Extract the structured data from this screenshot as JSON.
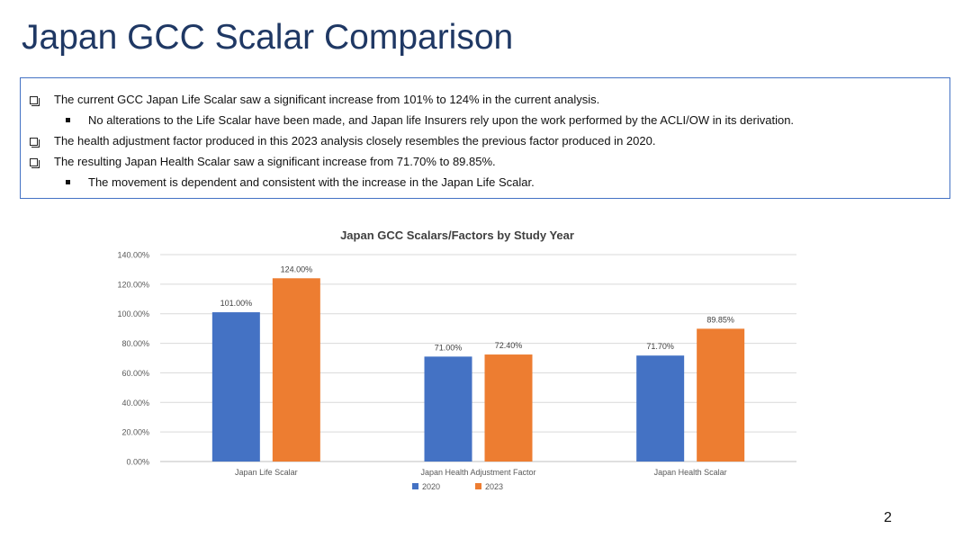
{
  "slide": {
    "title": "Japan GCC Scalar Comparison",
    "page_number": "2"
  },
  "bullets": [
    {
      "level": 1,
      "text": "The current GCC Japan Life Scalar saw a significant increase from 101% to 124% in the current analysis."
    },
    {
      "level": 2,
      "text": "No alterations to the Life Scalar have been made, and Japan life Insurers rely upon the work performed by the ACLI/OW in its derivation."
    },
    {
      "level": 1,
      "text": "The health adjustment factor produced in this 2023 analysis closely resembles the previous factor produced in 2020."
    },
    {
      "level": 1,
      "text": "The resulting Japan Health Scalar saw a significant increase from 71.70% to 89.85%."
    },
    {
      "level": 2,
      "text": "The movement is dependent and consistent with the increase in the Japan Life Scalar."
    }
  ],
  "chart_data": {
    "type": "bar",
    "title": "Japan GCC Scalars/Factors by Study Year",
    "categories": [
      "Japan Life Scalar",
      "Japan Health Adjustment Factor",
      "Japan Health Scalar"
    ],
    "series": [
      {
        "name": "2020",
        "color": "#4472c4",
        "values": [
          101.0,
          71.0,
          71.7
        ],
        "labels": [
          "101.00%",
          "71.00%",
          "71.70%"
        ]
      },
      {
        "name": "2023",
        "color": "#ed7d31",
        "values": [
          124.0,
          72.4,
          89.85
        ],
        "labels": [
          "124.00%",
          "72.40%",
          "89.85%"
        ]
      }
    ],
    "yticks": [
      "0.00%",
      "20.00%",
      "40.00%",
      "60.00%",
      "80.00%",
      "100.00%",
      "120.00%",
      "140.00%"
    ],
    "ylim": [
      0,
      140
    ],
    "grid": true,
    "legend": "bottom"
  }
}
